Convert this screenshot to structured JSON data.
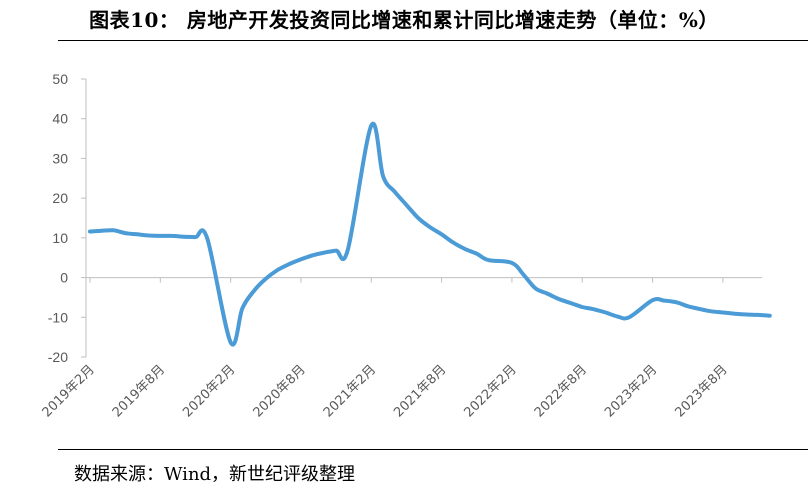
{
  "title": "图表10： 房地产开发投资同比增速和累计同比增速走势（单位：%）",
  "source": "数据来源：Wind，新世纪评级整理",
  "chart_data": {
    "type": "line",
    "ylim": [
      -20,
      50
    ],
    "yticks": [
      50,
      40,
      30,
      20,
      10,
      0,
      -10,
      -20
    ],
    "xtick_labels": [
      "2019年2月",
      "2019年8月",
      "2020年2月",
      "2020年8月",
      "2021年2月",
      "2021年8月",
      "2022年2月",
      "2022年8月",
      "2023年2月",
      "2023年8月"
    ],
    "grid": false,
    "legend": "none",
    "color": "#4A9BD6",
    "series": [
      {
        "x": [
          "2019-02",
          "2019-03",
          "2019-04",
          "2019-05",
          "2019-06",
          "2019-07",
          "2019-08",
          "2019-09",
          "2019-10",
          "2019-11",
          "2019-12",
          "2020-02",
          "2020-03",
          "2020-04",
          "2020-05",
          "2020-06",
          "2020-07",
          "2020-08",
          "2020-09",
          "2020-10",
          "2020-11",
          "2020-12",
          "2021-02",
          "2021-03",
          "2021-04",
          "2021-05",
          "2021-06",
          "2021-07",
          "2021-08",
          "2021-09",
          "2021-10",
          "2021-11",
          "2021-12",
          "2022-02",
          "2022-03",
          "2022-04",
          "2022-05",
          "2022-06",
          "2022-07",
          "2022-08",
          "2022-09",
          "2022-10",
          "2022-11",
          "2022-12",
          "2023-02",
          "2023-03",
          "2023-04",
          "2023-05",
          "2023-06",
          "2023-07",
          "2023-08",
          "2023-09",
          "2023-10",
          "2023-11",
          "2023-12"
        ],
        "values": [
          11.6,
          11.8,
          11.9,
          11.2,
          10.9,
          10.6,
          10.5,
          10.5,
          10.3,
          10.2,
          9.9,
          -16.3,
          -7.7,
          -3.3,
          -0.3,
          1.9,
          3.4,
          4.6,
          5.6,
          6.3,
          6.8,
          7.0,
          38.3,
          25.6,
          21.6,
          18.3,
          15.0,
          12.7,
          10.9,
          8.8,
          7.2,
          6.0,
          4.4,
          3.7,
          0.7,
          -2.7,
          -4.0,
          -5.4,
          -6.4,
          -7.4,
          -8.0,
          -8.8,
          -9.8,
          -10.0,
          -5.7,
          -5.8,
          -6.2,
          -7.2,
          -7.9,
          -8.5,
          -8.8,
          -9.1,
          -9.3,
          -9.4,
          -9.6
        ]
      }
    ]
  }
}
